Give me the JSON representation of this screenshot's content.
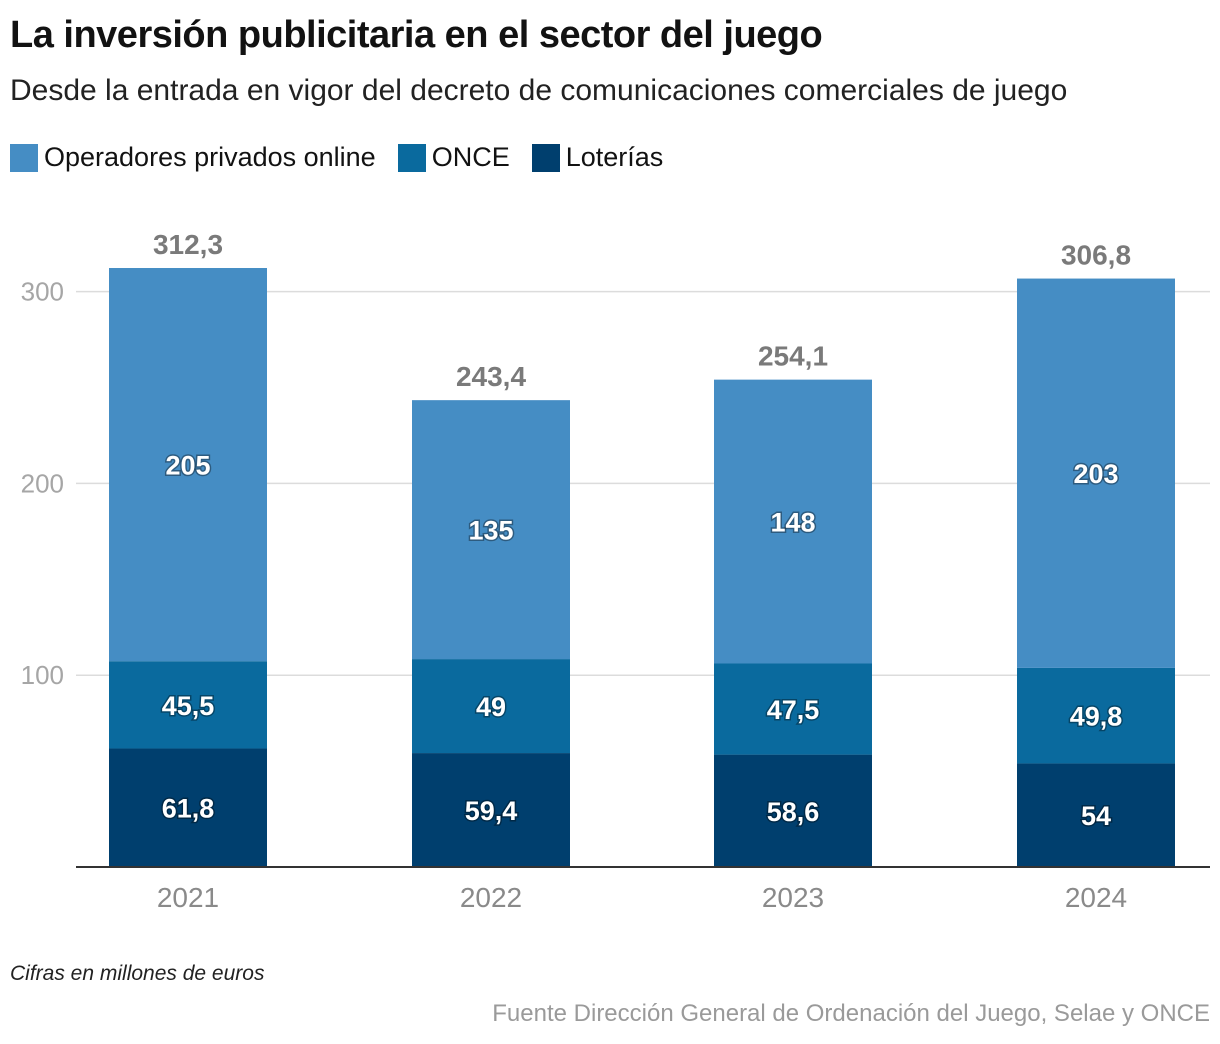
{
  "title": "La inversión publicitaria en el sector del juego",
  "subtitle": "Desde la entrada en vigor del decreto de comunicaciones comerciales de juego",
  "note": "Cifras en millones de euros",
  "source": "Fuente Dirección General de Ordenación del Juego, Selae y ONCE",
  "chart_data": {
    "type": "bar",
    "stacked": true,
    "categories": [
      "2021",
      "2022",
      "2023",
      "2024"
    ],
    "series": [
      {
        "name": "Loterías",
        "color": "#003f6e",
        "values": [
          61.8,
          59.4,
          58.6,
          54
        ],
        "labels": [
          "61,8",
          "59,4",
          "58,6",
          "54"
        ]
      },
      {
        "name": "ONCE",
        "color": "#0a6a9e",
        "values": [
          45.5,
          49,
          47.5,
          49.8
        ],
        "labels": [
          "45,5",
          "49",
          "47,5",
          "49,8"
        ]
      },
      {
        "name": "Operadores privados online",
        "color": "#458dc4",
        "values": [
          205,
          135,
          148,
          203
        ],
        "labels": [
          "205",
          "135",
          "148",
          "203"
        ]
      }
    ],
    "totals": [
      312.3,
      243.4,
      254.1,
      306.8
    ],
    "total_labels": [
      "312,3",
      "243,4",
      "254,1",
      "306,8"
    ],
    "ylim": [
      0,
      340
    ],
    "yticks": [
      100,
      200,
      300
    ],
    "grid": true,
    "legend_position": "top-left",
    "xlabel": "",
    "ylabel": ""
  }
}
